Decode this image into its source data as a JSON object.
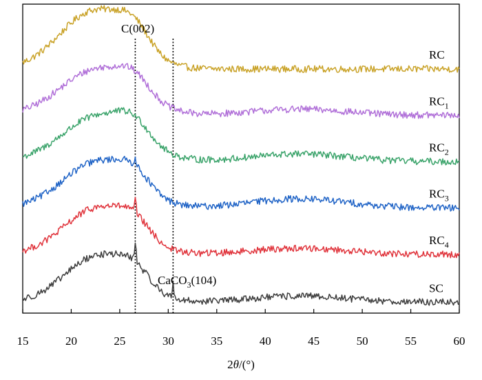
{
  "chart_data": {
    "type": "line",
    "xlabel": "2θ/(°)",
    "x_range": [
      15,
      60
    ],
    "x_ticks": [
      "15",
      "20",
      "25",
      "30",
      "35",
      "40",
      "45",
      "50",
      "55",
      "60"
    ],
    "y_ticks_shown": false,
    "grid": false,
    "legend": "none; series labelled at right end of each curve",
    "stacked_offset": true,
    "series": [
      {
        "name": "RC",
        "label_main": "RC",
        "label_sub": "",
        "color": "#c9a227",
        "baseline": 0.79,
        "hump_height": 0.19,
        "hump_center": 22.5,
        "hump_width": 3.6,
        "amorphous2": 0.0,
        "peak_c002": 0.0,
        "peak_caco3": 0.0
      },
      {
        "name": "RC1",
        "label_main": "RC",
        "label_sub": "1",
        "color": "#b06fd8",
        "baseline": 0.64,
        "hump_height": 0.15,
        "hump_center": 22.8,
        "hump_width": 3.8,
        "amorphous2": 0.02,
        "peak_c002": 0.0,
        "peak_caco3": 0.0
      },
      {
        "name": "RC2",
        "label_main": "RC",
        "label_sub": "2",
        "color": "#3aa36a",
        "baseline": 0.49,
        "hump_height": 0.15,
        "hump_center": 23.0,
        "hump_width": 3.8,
        "amorphous2": 0.025,
        "peak_c002": 0.0,
        "peak_caco3": 0.0
      },
      {
        "name": "RC3",
        "label_main": "RC",
        "label_sub": "3",
        "color": "#1f63c6",
        "baseline": 0.34,
        "hump_height": 0.15,
        "hump_center": 22.8,
        "hump_width": 3.6,
        "amorphous2": 0.03,
        "peak_c002": 0.03,
        "peak_caco3": 0.0
      },
      {
        "name": "RC4",
        "label_main": "RC",
        "label_sub": "4",
        "color": "#e0333b",
        "baseline": 0.19,
        "hump_height": 0.15,
        "hump_center": 22.8,
        "hump_width": 3.5,
        "amorphous2": 0.02,
        "peak_c002": 0.04,
        "peak_caco3": 0.0
      },
      {
        "name": "SC",
        "label_main": "SC",
        "label_sub": "",
        "color": "#3d3d3d",
        "baseline": 0.035,
        "hump_height": 0.15,
        "hump_center": 22.8,
        "hump_width": 3.4,
        "amorphous2": 0.02,
        "peak_c002": 0.06,
        "peak_caco3": 0.05
      }
    ],
    "reference_lines": [
      {
        "x": 26.6,
        "label": "C(002)"
      },
      {
        "x": 30.5
      }
    ],
    "annotations": [
      {
        "text_main": "CaCO",
        "text_sub": "3",
        "text_tail": "(104)",
        "x": 29.2
      }
    ]
  }
}
